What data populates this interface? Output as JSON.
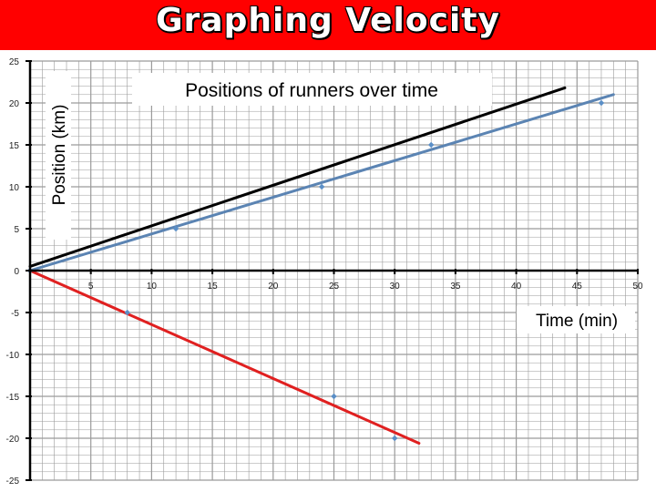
{
  "page": {
    "title": "Graphing Velocity"
  },
  "chart_data": {
    "type": "scatter",
    "title": "Positions of runners over time",
    "xlabel": "Time (min)",
    "ylabel": "Position (km)",
    "xlim": [
      0,
      50
    ],
    "ylim": [
      -25,
      25
    ],
    "xticks": [
      5,
      10,
      15,
      20,
      25,
      30,
      35,
      40,
      45,
      50
    ],
    "yticks": [
      25,
      20,
      15,
      10,
      5,
      0,
      -5,
      -10,
      -15,
      -20,
      -25
    ],
    "grid": true,
    "colors": {
      "grid": "#9a9a9a",
      "points": "#5b8fc7",
      "blue_line": "#5b84b3",
      "black_line": "#000000",
      "red_line": "#e02020",
      "title_bar": "#ff0000"
    },
    "series": [
      {
        "points": [
          [
            0,
            0
          ],
          [
            8,
            -5
          ],
          [
            25,
            -15
          ],
          [
            30,
            -20
          ]
        ],
        "fit": [
          [
            0,
            0
          ],
          [
            32,
            -20.6
          ]
        ],
        "color": "#e02020"
      },
      {
        "points": [
          [
            0,
            0
          ],
          [
            12,
            5
          ],
          [
            24,
            10
          ],
          [
            33,
            15
          ],
          [
            47,
            20
          ]
        ],
        "fit": [
          [
            0,
            0
          ],
          [
            48,
            21
          ]
        ],
        "color": "#5b84b3"
      },
      {
        "points": [],
        "fit": [
          [
            0,
            0.5
          ],
          [
            44,
            21.8
          ]
        ],
        "color": "#000000"
      }
    ]
  }
}
